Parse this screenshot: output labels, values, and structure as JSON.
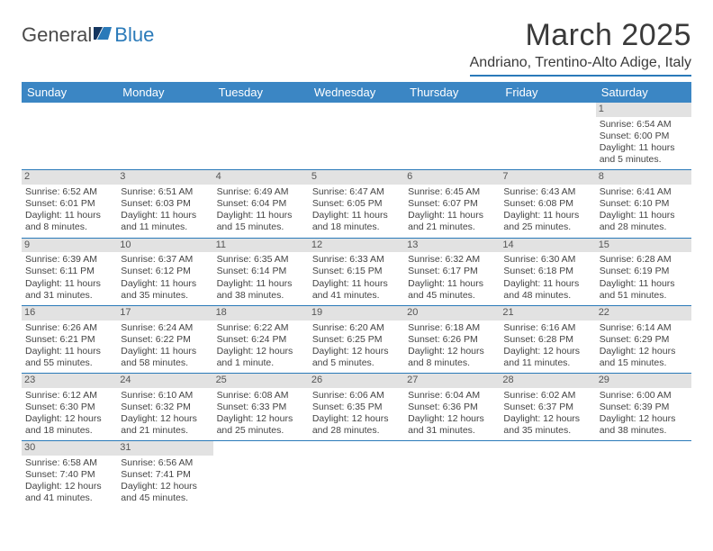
{
  "brand": {
    "general": "General",
    "blue": "Blue"
  },
  "title": "March 2025",
  "location": "Andriano, Trentino-Alto Adige, Italy",
  "colors": {
    "header_bg": "#3b86c4",
    "header_text": "#ffffff",
    "rule": "#2a7ab9",
    "daynum_bg": "#e2e2e2",
    "body_text": "#444444"
  },
  "weekdays": [
    "Sunday",
    "Monday",
    "Tuesday",
    "Wednesday",
    "Thursday",
    "Friday",
    "Saturday"
  ],
  "weeks": [
    [
      null,
      null,
      null,
      null,
      null,
      null,
      {
        "n": "1",
        "sunrise": "Sunrise: 6:54 AM",
        "sunset": "Sunset: 6:00 PM",
        "daylight": "Daylight: 11 hours and 5 minutes."
      }
    ],
    [
      {
        "n": "2",
        "sunrise": "Sunrise: 6:52 AM",
        "sunset": "Sunset: 6:01 PM",
        "daylight": "Daylight: 11 hours and 8 minutes."
      },
      {
        "n": "3",
        "sunrise": "Sunrise: 6:51 AM",
        "sunset": "Sunset: 6:03 PM",
        "daylight": "Daylight: 11 hours and 11 minutes."
      },
      {
        "n": "4",
        "sunrise": "Sunrise: 6:49 AM",
        "sunset": "Sunset: 6:04 PM",
        "daylight": "Daylight: 11 hours and 15 minutes."
      },
      {
        "n": "5",
        "sunrise": "Sunrise: 6:47 AM",
        "sunset": "Sunset: 6:05 PM",
        "daylight": "Daylight: 11 hours and 18 minutes."
      },
      {
        "n": "6",
        "sunrise": "Sunrise: 6:45 AM",
        "sunset": "Sunset: 6:07 PM",
        "daylight": "Daylight: 11 hours and 21 minutes."
      },
      {
        "n": "7",
        "sunrise": "Sunrise: 6:43 AM",
        "sunset": "Sunset: 6:08 PM",
        "daylight": "Daylight: 11 hours and 25 minutes."
      },
      {
        "n": "8",
        "sunrise": "Sunrise: 6:41 AM",
        "sunset": "Sunset: 6:10 PM",
        "daylight": "Daylight: 11 hours and 28 minutes."
      }
    ],
    [
      {
        "n": "9",
        "sunrise": "Sunrise: 6:39 AM",
        "sunset": "Sunset: 6:11 PM",
        "daylight": "Daylight: 11 hours and 31 minutes."
      },
      {
        "n": "10",
        "sunrise": "Sunrise: 6:37 AM",
        "sunset": "Sunset: 6:12 PM",
        "daylight": "Daylight: 11 hours and 35 minutes."
      },
      {
        "n": "11",
        "sunrise": "Sunrise: 6:35 AM",
        "sunset": "Sunset: 6:14 PM",
        "daylight": "Daylight: 11 hours and 38 minutes."
      },
      {
        "n": "12",
        "sunrise": "Sunrise: 6:33 AM",
        "sunset": "Sunset: 6:15 PM",
        "daylight": "Daylight: 11 hours and 41 minutes."
      },
      {
        "n": "13",
        "sunrise": "Sunrise: 6:32 AM",
        "sunset": "Sunset: 6:17 PM",
        "daylight": "Daylight: 11 hours and 45 minutes."
      },
      {
        "n": "14",
        "sunrise": "Sunrise: 6:30 AM",
        "sunset": "Sunset: 6:18 PM",
        "daylight": "Daylight: 11 hours and 48 minutes."
      },
      {
        "n": "15",
        "sunrise": "Sunrise: 6:28 AM",
        "sunset": "Sunset: 6:19 PM",
        "daylight": "Daylight: 11 hours and 51 minutes."
      }
    ],
    [
      {
        "n": "16",
        "sunrise": "Sunrise: 6:26 AM",
        "sunset": "Sunset: 6:21 PM",
        "daylight": "Daylight: 11 hours and 55 minutes."
      },
      {
        "n": "17",
        "sunrise": "Sunrise: 6:24 AM",
        "sunset": "Sunset: 6:22 PM",
        "daylight": "Daylight: 11 hours and 58 minutes."
      },
      {
        "n": "18",
        "sunrise": "Sunrise: 6:22 AM",
        "sunset": "Sunset: 6:24 PM",
        "daylight": "Daylight: 12 hours and 1 minute."
      },
      {
        "n": "19",
        "sunrise": "Sunrise: 6:20 AM",
        "sunset": "Sunset: 6:25 PM",
        "daylight": "Daylight: 12 hours and 5 minutes."
      },
      {
        "n": "20",
        "sunrise": "Sunrise: 6:18 AM",
        "sunset": "Sunset: 6:26 PM",
        "daylight": "Daylight: 12 hours and 8 minutes."
      },
      {
        "n": "21",
        "sunrise": "Sunrise: 6:16 AM",
        "sunset": "Sunset: 6:28 PM",
        "daylight": "Daylight: 12 hours and 11 minutes."
      },
      {
        "n": "22",
        "sunrise": "Sunrise: 6:14 AM",
        "sunset": "Sunset: 6:29 PM",
        "daylight": "Daylight: 12 hours and 15 minutes."
      }
    ],
    [
      {
        "n": "23",
        "sunrise": "Sunrise: 6:12 AM",
        "sunset": "Sunset: 6:30 PM",
        "daylight": "Daylight: 12 hours and 18 minutes."
      },
      {
        "n": "24",
        "sunrise": "Sunrise: 6:10 AM",
        "sunset": "Sunset: 6:32 PM",
        "daylight": "Daylight: 12 hours and 21 minutes."
      },
      {
        "n": "25",
        "sunrise": "Sunrise: 6:08 AM",
        "sunset": "Sunset: 6:33 PM",
        "daylight": "Daylight: 12 hours and 25 minutes."
      },
      {
        "n": "26",
        "sunrise": "Sunrise: 6:06 AM",
        "sunset": "Sunset: 6:35 PM",
        "daylight": "Daylight: 12 hours and 28 minutes."
      },
      {
        "n": "27",
        "sunrise": "Sunrise: 6:04 AM",
        "sunset": "Sunset: 6:36 PM",
        "daylight": "Daylight: 12 hours and 31 minutes."
      },
      {
        "n": "28",
        "sunrise": "Sunrise: 6:02 AM",
        "sunset": "Sunset: 6:37 PM",
        "daylight": "Daylight: 12 hours and 35 minutes."
      },
      {
        "n": "29",
        "sunrise": "Sunrise: 6:00 AM",
        "sunset": "Sunset: 6:39 PM",
        "daylight": "Daylight: 12 hours and 38 minutes."
      }
    ],
    [
      {
        "n": "30",
        "sunrise": "Sunrise: 6:58 AM",
        "sunset": "Sunset: 7:40 PM",
        "daylight": "Daylight: 12 hours and 41 minutes."
      },
      {
        "n": "31",
        "sunrise": "Sunrise: 6:56 AM",
        "sunset": "Sunset: 7:41 PM",
        "daylight": "Daylight: 12 hours and 45 minutes."
      },
      null,
      null,
      null,
      null,
      null
    ]
  ]
}
